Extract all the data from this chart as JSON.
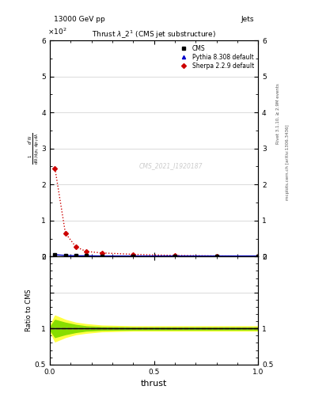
{
  "title": "Thrust $\\lambda\\_2^1$ (CMS jet substructure)",
  "top_left_label": "13000 GeV pp",
  "top_right_label": "Jets",
  "right_label_top": "Rivet 3.1.10, ≥ 2.9M events",
  "right_label_bottom": "mcplots.cern.ch [arXiv:1306.3436]",
  "watermark": "CMS_2021_I1920187",
  "ylabel_ratio": "Ratio to CMS",
  "xlabel": "thrust",
  "ylim_main": [
    0,
    600
  ],
  "ylim_ratio": [
    0.5,
    2.0
  ],
  "xlim": [
    0,
    1
  ],
  "sherpa_x": [
    0.025,
    0.075,
    0.125,
    0.175,
    0.25,
    0.4,
    0.6,
    0.8,
    1.0
  ],
  "sherpa_y": [
    245,
    65,
    27,
    14,
    10,
    6,
    3,
    1.5,
    1
  ],
  "cms_x": [
    0.025,
    0.075,
    0.125,
    0.175,
    0.25,
    0.4,
    0.6,
    0.8,
    1.0
  ],
  "cms_y": [
    5,
    3,
    2,
    2,
    1.5,
    1.5,
    1.5,
    1.5,
    1.5
  ],
  "pythia_x": [
    0.025,
    0.075,
    0.125,
    0.175,
    0.25,
    0.4,
    0.6,
    0.8,
    1.0
  ],
  "pythia_y": [
    5,
    3,
    2,
    2,
    1.5,
    1.5,
    1.5,
    1.5,
    1.5
  ],
  "cms_color": "#000000",
  "pythia_color": "#0000cc",
  "sherpa_color": "#cc0000",
  "bg_color": "#ffffff",
  "grid_color": "#cccccc"
}
